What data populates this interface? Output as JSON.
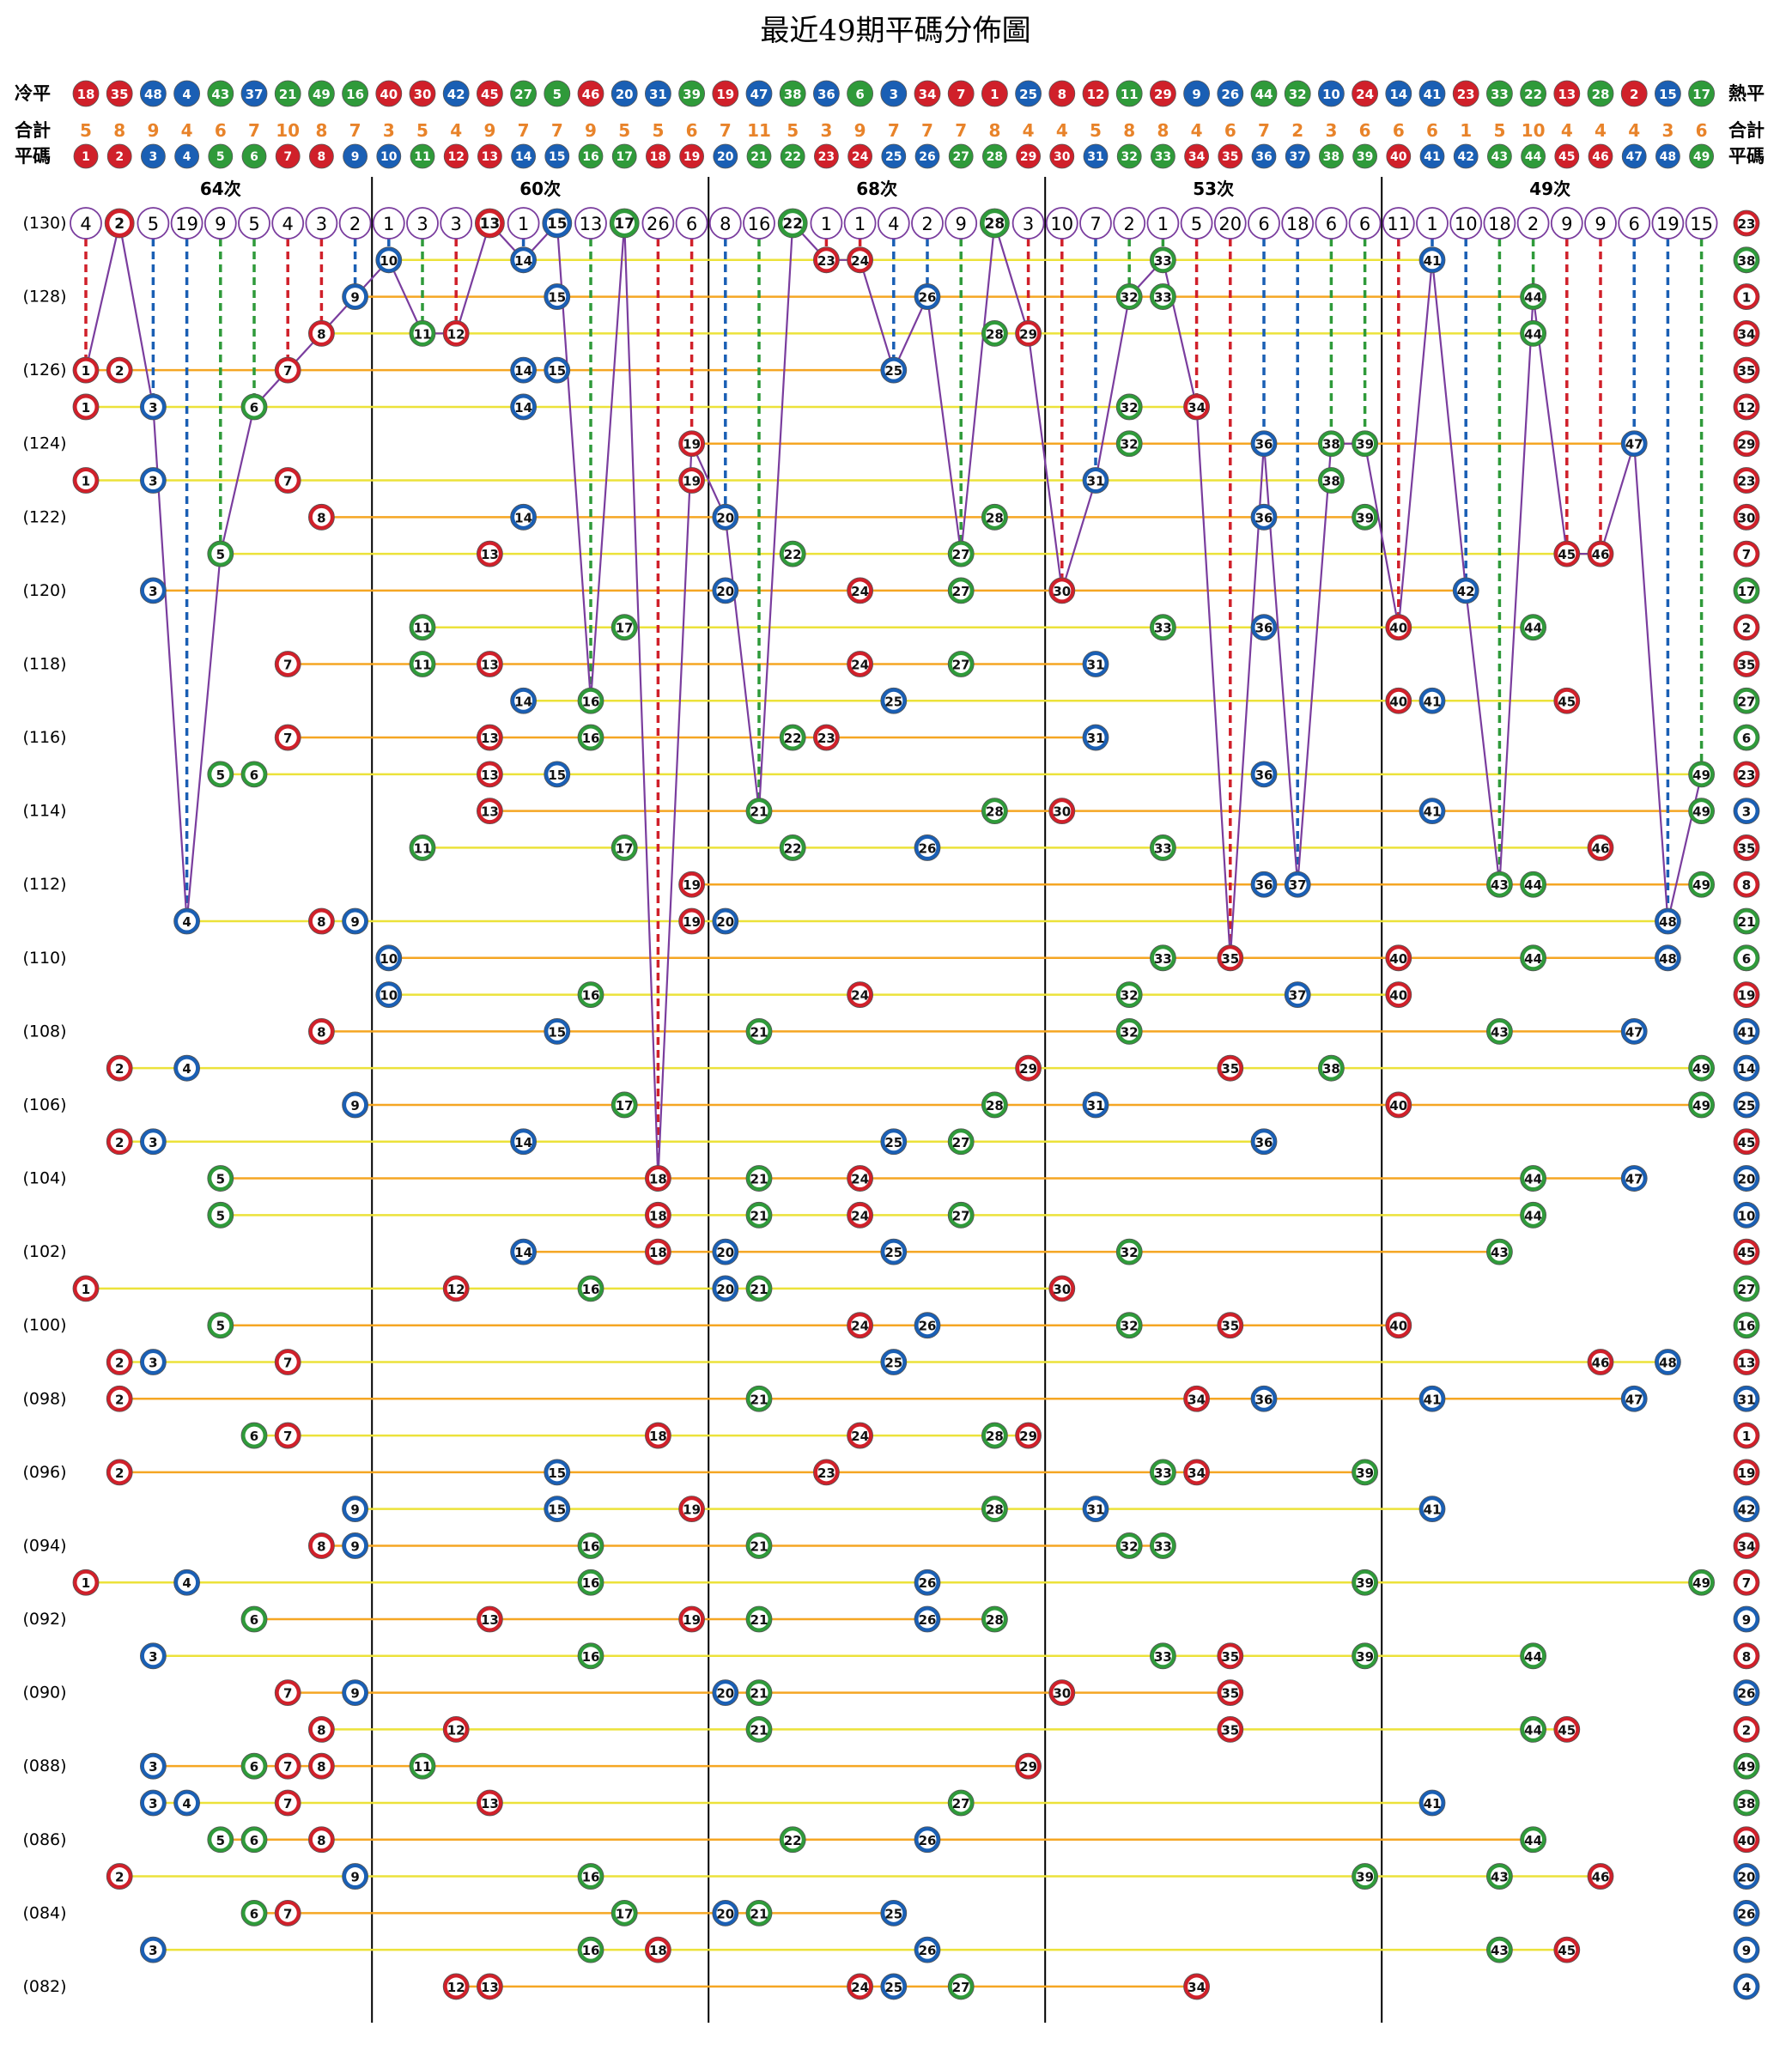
{
  "title": "最近49期平碼分佈圖",
  "cold_label": "冷平",
  "hot_label": "熱平",
  "cold_order": [
    18,
    35,
    48,
    4,
    43,
    37,
    21,
    49,
    16,
    40,
    30,
    42,
    45,
    27,
    5,
    46,
    20,
    31,
    39,
    19,
    47,
    38,
    36,
    6,
    3,
    34,
    7,
    1,
    25,
    8,
    12,
    11,
    29,
    9,
    26,
    44,
    32,
    10,
    24,
    14,
    41,
    23,
    33,
    22,
    13,
    28,
    2,
    15,
    17
  ],
  "total_label": "合計",
  "totals": [
    5,
    8,
    9,
    4,
    6,
    7,
    10,
    8,
    7,
    3,
    5,
    4,
    9,
    7,
    7,
    9,
    5,
    5,
    6,
    7,
    11,
    5,
    3,
    9,
    7,
    7,
    7,
    8,
    4,
    4,
    5,
    8,
    8,
    4,
    6,
    7,
    2,
    3,
    6,
    6,
    6,
    1,
    5,
    10,
    4,
    4,
    4,
    3,
    6
  ],
  "number_label": "平碼",
  "numbers": [
    1,
    2,
    3,
    4,
    5,
    6,
    7,
    8,
    9,
    10,
    11,
    12,
    13,
    14,
    15,
    16,
    17,
    18,
    19,
    20,
    21,
    22,
    23,
    24,
    25,
    26,
    27,
    28,
    29,
    30,
    31,
    32,
    33,
    34,
    35,
    36,
    37,
    38,
    39,
    40,
    41,
    42,
    43,
    44,
    45,
    46,
    47,
    48,
    49
  ],
  "groups": [
    "64次",
    "60次",
    "68次",
    "53次",
    "49次"
  ],
  "miss": [
    4,
    null,
    5,
    19,
    9,
    5,
    4,
    3,
    2,
    1,
    3,
    3,
    null,
    1,
    null,
    13,
    null,
    26,
    6,
    8,
    16,
    null,
    1,
    1,
    4,
    2,
    9,
    null,
    3,
    10,
    7,
    2,
    1,
    5,
    20,
    6,
    18,
    6,
    6,
    11,
    1,
    10,
    18,
    2,
    9,
    9,
    6,
    19,
    15
  ],
  "draws": [
    {
      "period": "(130)",
      "balls": [
        2,
        13,
        15,
        17,
        22,
        28
      ],
      "special": 23
    },
    {
      "period": null,
      "balls": [
        10,
        14,
        23,
        24,
        33,
        41
      ],
      "special": 38
    },
    {
      "period": "(128)",
      "balls": [
        9,
        15,
        26,
        32,
        33,
        44
      ],
      "special": 1
    },
    {
      "period": null,
      "balls": [
        8,
        11,
        12,
        28,
        29,
        44
      ],
      "special": 34
    },
    {
      "period": "(126)",
      "balls": [
        1,
        2,
        7,
        14,
        15,
        25
      ],
      "special": 35
    },
    {
      "period": null,
      "balls": [
        1,
        3,
        6,
        14,
        32,
        34
      ],
      "special": 12
    },
    {
      "period": "(124)",
      "balls": [
        19,
        32,
        36,
        38,
        39,
        47
      ],
      "special": 29
    },
    {
      "period": null,
      "balls": [
        1,
        3,
        7,
        19,
        31,
        38
      ],
      "special": 23
    },
    {
      "period": "(122)",
      "balls": [
        8,
        14,
        20,
        28,
        36,
        39
      ],
      "special": 30
    },
    {
      "period": null,
      "balls": [
        5,
        13,
        22,
        27,
        45,
        46
      ],
      "special": 7
    },
    {
      "period": "(120)",
      "balls": [
        3,
        20,
        24,
        27,
        30,
        42
      ],
      "special": 17
    },
    {
      "period": null,
      "balls": [
        11,
        17,
        33,
        36,
        40,
        44
      ],
      "special": 2
    },
    {
      "period": "(118)",
      "balls": [
        7,
        11,
        13,
        24,
        27,
        31
      ],
      "special": 35
    },
    {
      "period": null,
      "balls": [
        14,
        16,
        25,
        40,
        41,
        45
      ],
      "special": 27
    },
    {
      "period": "(116)",
      "balls": [
        7,
        13,
        16,
        22,
        23,
        31
      ],
      "special": 6
    },
    {
      "period": null,
      "balls": [
        5,
        6,
        13,
        15,
        36,
        49
      ],
      "special": 23
    },
    {
      "period": "(114)",
      "balls": [
        13,
        21,
        28,
        30,
        41,
        49
      ],
      "special": 3
    },
    {
      "period": null,
      "balls": [
        11,
        17,
        22,
        26,
        33,
        46
      ],
      "special": 35
    },
    {
      "period": "(112)",
      "balls": [
        19,
        36,
        37,
        43,
        44,
        49
      ],
      "special": 8
    },
    {
      "period": null,
      "balls": [
        4,
        8,
        9,
        19,
        20,
        48
      ],
      "special": 21
    },
    {
      "period": "(110)",
      "balls": [
        10,
        33,
        35,
        40,
        44,
        48
      ],
      "special": 6
    },
    {
      "period": null,
      "balls": [
        10,
        16,
        24,
        32,
        37,
        40
      ],
      "special": 19
    },
    {
      "period": "(108)",
      "balls": [
        8,
        15,
        21,
        32,
        43,
        47
      ],
      "special": 41
    },
    {
      "period": null,
      "balls": [
        2,
        4,
        29,
        35,
        38,
        49
      ],
      "special": 14
    },
    {
      "period": "(106)",
      "balls": [
        9,
        17,
        28,
        31,
        40,
        49
      ],
      "special": 25
    },
    {
      "period": null,
      "balls": [
        2,
        3,
        14,
        25,
        27,
        36
      ],
      "special": 45
    },
    {
      "period": "(104)",
      "balls": [
        5,
        18,
        21,
        24,
        44,
        47
      ],
      "special": 20
    },
    {
      "period": null,
      "balls": [
        5,
        18,
        21,
        24,
        27,
        44
      ],
      "special": 10
    },
    {
      "period": "(102)",
      "balls": [
        14,
        18,
        20,
        25,
        32,
        43
      ],
      "special": 45
    },
    {
      "period": null,
      "balls": [
        1,
        12,
        16,
        20,
        21,
        30
      ],
      "special": 27
    },
    {
      "period": "(100)",
      "balls": [
        5,
        24,
        26,
        32,
        35,
        40
      ],
      "special": 16
    },
    {
      "period": null,
      "balls": [
        2,
        3,
        7,
        25,
        46,
        48
      ],
      "special": 13
    },
    {
      "period": "(098)",
      "balls": [
        2,
        21,
        34,
        36,
        41,
        47
      ],
      "special": 31
    },
    {
      "period": null,
      "balls": [
        6,
        7,
        18,
        24,
        28,
        29
      ],
      "special": 1
    },
    {
      "period": "(096)",
      "balls": [
        2,
        15,
        23,
        33,
        34,
        39
      ],
      "special": 19
    },
    {
      "period": null,
      "balls": [
        9,
        15,
        19,
        28,
        31,
        41
      ],
      "special": 42
    },
    {
      "period": "(094)",
      "balls": [
        8,
        9,
        16,
        21,
        32,
        33
      ],
      "special": 34
    },
    {
      "period": null,
      "balls": [
        1,
        4,
        16,
        26,
        39,
        49
      ],
      "special": 7
    },
    {
      "period": "(092)",
      "balls": [
        6,
        13,
        19,
        21,
        26,
        28
      ],
      "special": 9
    },
    {
      "period": null,
      "balls": [
        3,
        16,
        33,
        35,
        39,
        44
      ],
      "special": 8
    },
    {
      "period": "(090)",
      "balls": [
        7,
        9,
        20,
        21,
        30,
        35
      ],
      "special": 26
    },
    {
      "period": null,
      "balls": [
        8,
        12,
        21,
        35,
        44,
        45
      ],
      "special": 2
    },
    {
      "period": "(088)",
      "balls": [
        3,
        6,
        7,
        8,
        11,
        29
      ],
      "special": 49
    },
    {
      "period": null,
      "balls": [
        3,
        4,
        7,
        13,
        27,
        41
      ],
      "special": 38
    },
    {
      "period": "(086)",
      "balls": [
        5,
        6,
        8,
        22,
        26,
        44
      ],
      "special": 40
    },
    {
      "period": null,
      "balls": [
        2,
        9,
        16,
        39,
        43,
        46
      ],
      "special": 20
    },
    {
      "period": "(084)",
      "balls": [
        6,
        7,
        17,
        20,
        21,
        25
      ],
      "special": 26
    },
    {
      "period": null,
      "balls": [
        3,
        16,
        18,
        26,
        43,
        45
      ],
      "special": 9
    },
    {
      "period": "(082)",
      "balls": [
        12,
        13,
        24,
        25,
        27,
        34
      ],
      "special": 4
    }
  ],
  "number_colors": "rrbbggrrbbgrrbbggrrbggrrbbggrrbggrrbbggrbbggrrbbg",
  "palette": {
    "r": "#d0202a",
    "b": "#1a5fb4",
    "g": "#2f9a3a"
  },
  "total_color": "#e8832a",
  "trend_color": "#7a3d9e",
  "row_line_colors": [
    "#f5a623",
    "#ece23a"
  ]
}
